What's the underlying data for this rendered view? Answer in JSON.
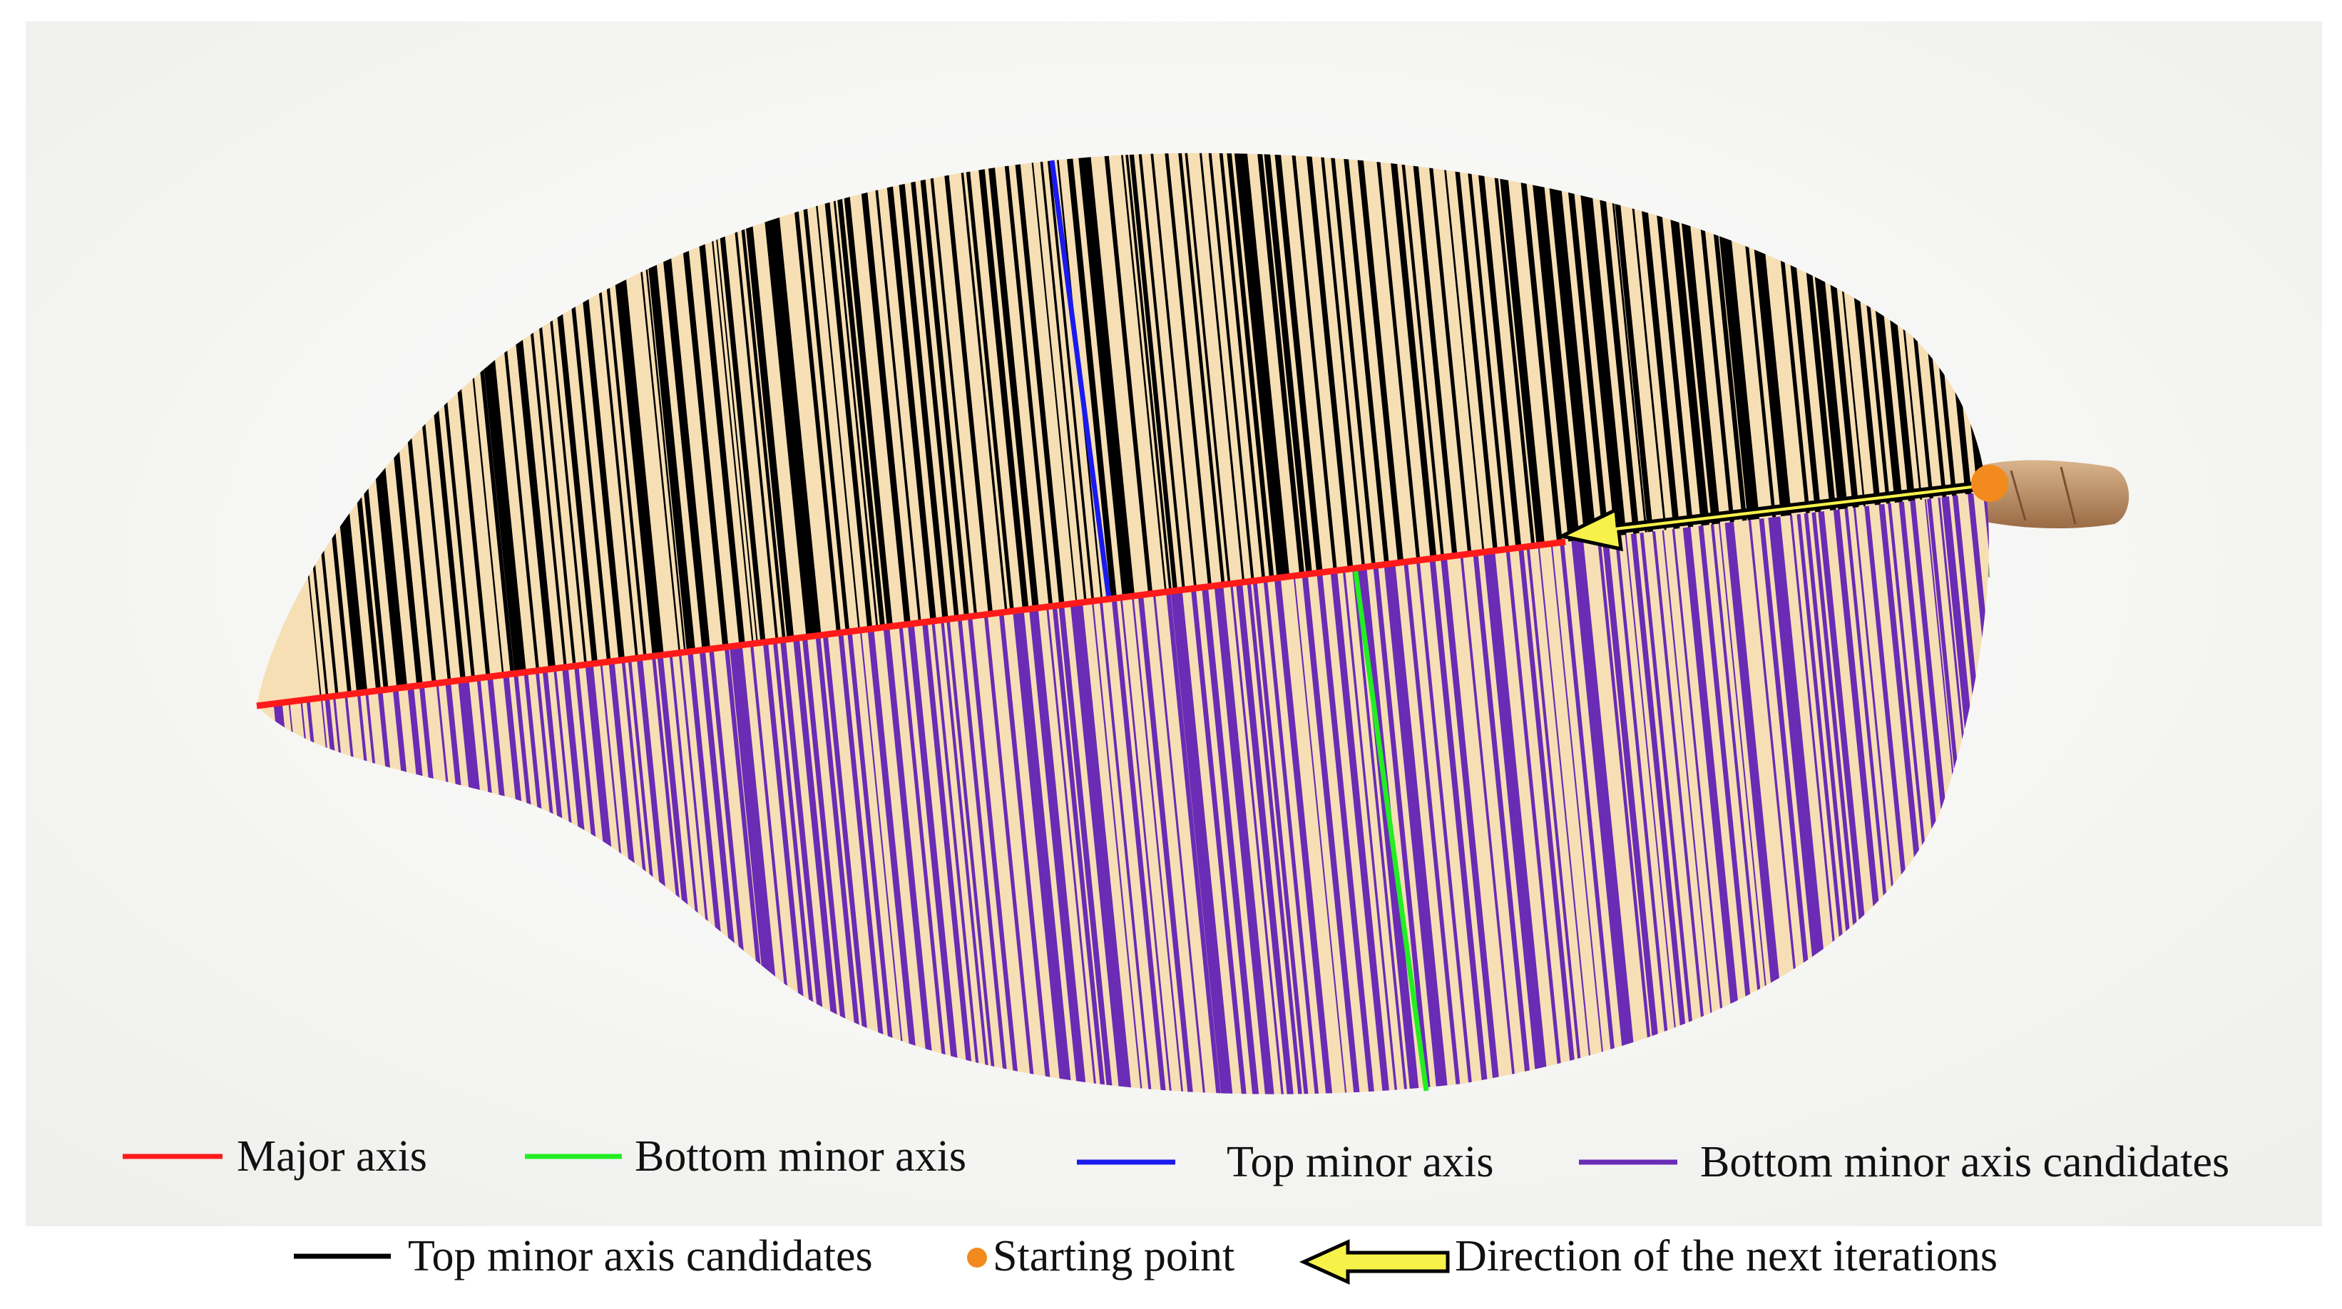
{
  "legend": {
    "row1": [
      {
        "label": "Major axis",
        "color": "#ff1a1a",
        "icon": "red-line"
      },
      {
        "label": "Bottom minor axis",
        "color": "#22ee22",
        "icon": "green-line"
      },
      {
        "label": "Top minor axis",
        "color": "#1a1aee",
        "icon": "blue-line"
      },
      {
        "label": "Bottom minor axis candidates",
        "color": "#6a2bb5",
        "icon": "purple-line"
      }
    ],
    "row2": [
      {
        "label": "Top minor axis candidates",
        "color": "#000000",
        "icon": "black-line"
      },
      {
        "label": "Starting point",
        "color": "#f28a1e",
        "icon": "orange-dot"
      },
      {
        "label": "Direction of the next iterations",
        "color": "#f7f24a",
        "icon": "yellow-arrow"
      }
    ]
  },
  "colors": {
    "leaf_fill": "#f6dfb4",
    "photo_background": "#f4f4f2",
    "stem": "#b98a5e",
    "top_candidates": "#000000",
    "bottom_candidates": "#6a2bb5"
  }
}
